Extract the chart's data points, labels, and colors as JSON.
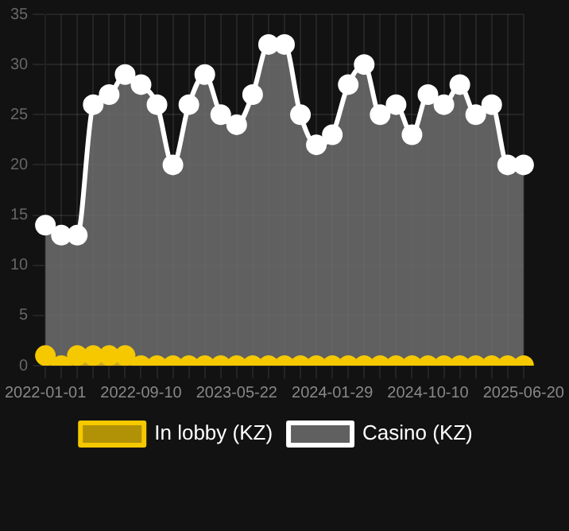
{
  "chart_data": {
    "type": "area",
    "categories": [
      "2022-01-01",
      null,
      null,
      null,
      null,
      null,
      "2022-09-10",
      null,
      null,
      null,
      null,
      null,
      "2023-05-22",
      null,
      null,
      null,
      null,
      null,
      "2024-01-29",
      null,
      null,
      null,
      null,
      null,
      "2024-10-10",
      null,
      null,
      null,
      null,
      null,
      "2025-06-20"
    ],
    "series": [
      {
        "name": "In lobby (KZ)",
        "color": "#f5c800",
        "values": [
          1,
          0,
          1,
          1,
          1,
          1,
          0,
          0,
          0,
          0,
          0,
          0,
          0,
          0,
          0,
          0,
          0,
          0,
          0,
          0,
          0,
          0,
          0,
          0,
          0,
          0,
          0,
          0,
          0,
          0,
          0
        ]
      },
      {
        "name": "Casino (KZ)",
        "color": "#ffffff",
        "values": [
          14,
          13,
          13,
          26,
          27,
          29,
          28,
          26,
          20,
          26,
          29,
          25,
          24,
          27,
          32,
          32,
          25,
          22,
          23,
          28,
          30,
          25,
          26,
          23,
          27,
          26,
          28,
          25,
          26,
          20,
          20
        ]
      }
    ],
    "ylim": [
      0,
      35
    ],
    "yticks": [
      0,
      5,
      10,
      15,
      20,
      25,
      30,
      35
    ],
    "grid": true,
    "legend": "bottom",
    "marker": "circle"
  }
}
